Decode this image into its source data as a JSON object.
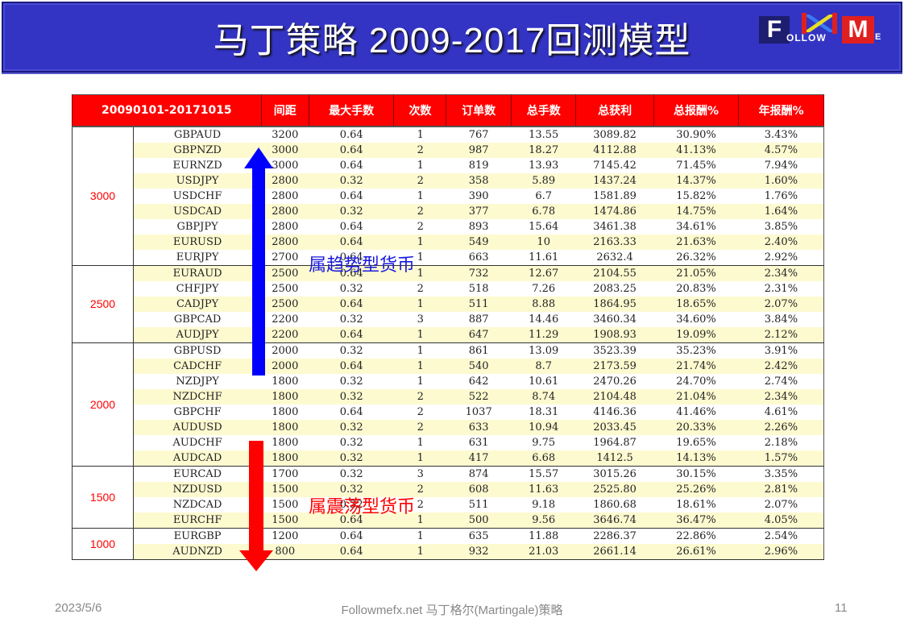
{
  "header": {
    "title": "马丁策略 2009-2017回测模型",
    "logo": {
      "f": "F",
      "ollow": "OLLOW",
      "m": "M",
      "e": "E"
    },
    "colors": {
      "bar": "#3333c4",
      "text": "#ffffff"
    }
  },
  "table": {
    "columns": [
      "20090101-20171015",
      "间距",
      "最大手数",
      "次数",
      "订单数",
      "总手数",
      "总获利",
      "总报酬%",
      "年报酬%"
    ],
    "groups": [
      {
        "label": "3000",
        "rows": [
          [
            "GBPAUD",
            "3200",
            "0.64",
            "1",
            "767",
            "13.55",
            "3089.82",
            "30.90%",
            "3.43%"
          ],
          [
            "GBPNZD",
            "3000",
            "0.64",
            "2",
            "987",
            "18.27",
            "4112.88",
            "41.13%",
            "4.57%"
          ],
          [
            "EURNZD",
            "3000",
            "0.64",
            "1",
            "819",
            "13.93",
            "7145.42",
            "71.45%",
            "7.94%"
          ],
          [
            "USDJPY",
            "2800",
            "0.32",
            "2",
            "358",
            "5.89",
            "1437.24",
            "14.37%",
            "1.60%"
          ],
          [
            "USDCHF",
            "2800",
            "0.64",
            "1",
            "390",
            "6.7",
            "1581.89",
            "15.82%",
            "1.76%"
          ],
          [
            "USDCAD",
            "2800",
            "0.32",
            "2",
            "377",
            "6.78",
            "1474.86",
            "14.75%",
            "1.64%"
          ],
          [
            "GBPJPY",
            "2800",
            "0.64",
            "2",
            "893",
            "15.64",
            "3461.38",
            "34.61%",
            "3.85%"
          ],
          [
            "EURUSD",
            "2800",
            "0.64",
            "1",
            "549",
            "10",
            "2163.33",
            "21.63%",
            "2.40%"
          ],
          [
            "EURJPY",
            "2700",
            "0.64",
            "1",
            "663",
            "11.61",
            "2632.4",
            "26.32%",
            "2.92%"
          ]
        ]
      },
      {
        "label": "2500",
        "rows": [
          [
            "EURAUD",
            "2500",
            "0.64",
            "1",
            "732",
            "12.67",
            "2104.55",
            "21.05%",
            "2.34%"
          ],
          [
            "CHFJPY",
            "2500",
            "0.32",
            "2",
            "518",
            "7.26",
            "2083.25",
            "20.83%",
            "2.31%"
          ],
          [
            "CADJPY",
            "2500",
            "0.64",
            "1",
            "511",
            "8.88",
            "1864.95",
            "18.65%",
            "2.07%"
          ],
          [
            "GBPCAD",
            "2200",
            "0.32",
            "3",
            "887",
            "14.46",
            "3460.34",
            "34.60%",
            "3.84%"
          ],
          [
            "AUDJPY",
            "2200",
            "0.64",
            "1",
            "647",
            "11.29",
            "1908.93",
            "19.09%",
            "2.12%"
          ]
        ]
      },
      {
        "label": "2000",
        "rows": [
          [
            "GBPUSD",
            "2000",
            "0.32",
            "1",
            "861",
            "13.09",
            "3523.39",
            "35.23%",
            "3.91%"
          ],
          [
            "CADCHF",
            "2000",
            "0.64",
            "1",
            "540",
            "8.7",
            "2173.59",
            "21.74%",
            "2.42%"
          ],
          [
            "NZDJPY",
            "1800",
            "0.32",
            "1",
            "642",
            "10.61",
            "2470.26",
            "24.70%",
            "2.74%"
          ],
          [
            "NZDCHF",
            "1800",
            "0.32",
            "2",
            "522",
            "8.74",
            "2104.48",
            "21.04%",
            "2.34%"
          ],
          [
            "GBPCHF",
            "1800",
            "0.64",
            "2",
            "1037",
            "18.31",
            "4146.36",
            "41.46%",
            "4.61%"
          ],
          [
            "AUDUSD",
            "1800",
            "0.32",
            "2",
            "633",
            "10.94",
            "2033.45",
            "20.33%",
            "2.26%"
          ],
          [
            "AUDCHF",
            "1800",
            "0.32",
            "1",
            "631",
            "9.75",
            "1964.87",
            "19.65%",
            "2.18%"
          ],
          [
            "AUDCAD",
            "1800",
            "0.32",
            "1",
            "417",
            "6.68",
            "1412.5",
            "14.13%",
            "1.57%"
          ]
        ]
      },
      {
        "label": "1500",
        "rows": [
          [
            "EURCAD",
            "1700",
            "0.32",
            "3",
            "874",
            "15.57",
            "3015.26",
            "30.15%",
            "3.35%"
          ],
          [
            "NZDUSD",
            "1500",
            "0.32",
            "2",
            "608",
            "11.63",
            "2525.80",
            "25.26%",
            "2.81%"
          ],
          [
            "NZDCAD",
            "1500",
            "0.32",
            "2",
            "511",
            "9.18",
            "1860.68",
            "18.61%",
            "2.07%"
          ],
          [
            "EURCHF",
            "1500",
            "0.64",
            "1",
            "500",
            "9.56",
            "3646.74",
            "36.47%",
            "4.05%"
          ]
        ]
      },
      {
        "label": "1000",
        "rows": [
          [
            "EURGBP",
            "1200",
            "0.64",
            "1",
            "635",
            "11.88",
            "2286.37",
            "22.86%",
            "2.54%"
          ],
          [
            "AUDNZD",
            "800",
            "0.64",
            "1",
            "932",
            "21.03",
            "2661.14",
            "26.61%",
            "2.96%"
          ]
        ]
      }
    ]
  },
  "annotations": {
    "trend_label": "属趋势型货币",
    "range_label": "属震荡型货币",
    "trend_color": "#1a1adf",
    "range_color": "#ff0000"
  },
  "footer": {
    "date": "2023/5/6",
    "center": "Followmefx.net 马丁格尔(Martingale)策略",
    "page": "11"
  }
}
